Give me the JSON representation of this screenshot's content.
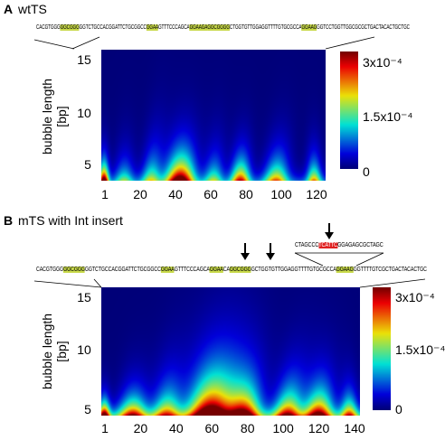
{
  "panel_a": {
    "letter": "A",
    "title": "wtTS",
    "sequence": [
      {
        "t": "CACGTGGG",
        "s": ""
      },
      {
        "t": "GGCGGG",
        "s": "hl"
      },
      {
        "t": "GGTCTGCCACGGATTCTGCGGCC",
        "s": ""
      },
      {
        "t": "GGAA",
        "s": "hl"
      },
      {
        "t": "GTTTCCCAGCA",
        "s": ""
      },
      {
        "t": "GGAAGA",
        "s": "hl"
      },
      {
        "t": "GGCGGGG",
        "s": "hl"
      },
      {
        "t": "CTGGTGTTGGAGGTTTTGTGCGCCA",
        "s": ""
      },
      {
        "t": "GGAAG",
        "s": "hl"
      },
      {
        "t": "GGTCCTGGTTGGCGCGCTGACTACACTGCTGC",
        "s": ""
      }
    ],
    "ylabel": "bubble length\n[bp]",
    "yticks": [
      "15",
      "10",
      "5"
    ],
    "xticks": [
      "1",
      "20",
      "40",
      "60",
      "80",
      "100",
      "120"
    ],
    "colorbar_ticks": [
      "3x10⁻⁴",
      "1.5x10⁻⁴",
      "0"
    ]
  },
  "panel_b": {
    "letter": "B",
    "title": "mTS with Int insert",
    "sequence": [
      {
        "t": "CACGTGGG",
        "s": ""
      },
      {
        "t": "GGCGGG",
        "s": "hl"
      },
      {
        "t": "GGTCTGCCACGGATTCTGCGGCC",
        "s": ""
      },
      {
        "t": "GGAA",
        "s": "hl"
      },
      {
        "t": "GTTTCCCAGCA",
        "s": ""
      },
      {
        "t": "GGAA",
        "s": "hl"
      },
      {
        "t": "CA",
        "s": ""
      },
      {
        "t": "GGCGGG",
        "s": "hl"
      },
      {
        "t": "GCTGGTGTTGGAGGTTTTGTGCGCCA",
        "s": ""
      },
      {
        "t": "GGAAG",
        "s": "hl"
      },
      {
        "t": "GGTTTTGTCGCTGACTACACTGC",
        "s": ""
      }
    ],
    "insert_sequence": [
      {
        "t": "CTAGCCC",
        "s": ""
      },
      {
        "t": "TCATTC",
        "s": "red"
      },
      {
        "t": "GGAGAGCGCTAGC",
        "s": ""
      }
    ],
    "ylabel": "bubble length\n[bp]",
    "yticks": [
      "15",
      "10",
      "5"
    ],
    "xticks": [
      "1",
      "20",
      "40",
      "60",
      "80",
      "100",
      "120",
      "140"
    ],
    "colorbar_ticks": [
      "3x10⁻⁴",
      "1.5x10⁻⁴",
      "0"
    ]
  },
  "colors": {
    "low": "#0a0a6e",
    "high": "#7a0000",
    "highlight": "#c8d94a",
    "insert_highlight": "#e02020"
  }
}
